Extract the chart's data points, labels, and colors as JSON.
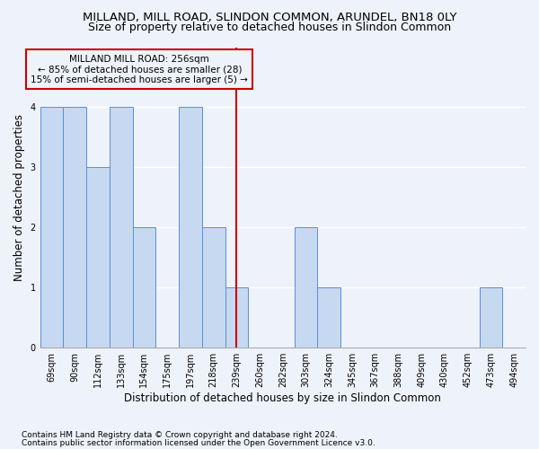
{
  "title1": "MILLAND, MILL ROAD, SLINDON COMMON, ARUNDEL, BN18 0LY",
  "title2": "Size of property relative to detached houses in Slindon Common",
  "xlabel": "Distribution of detached houses by size in Slindon Common",
  "ylabel": "Number of detached properties",
  "footnote1": "Contains HM Land Registry data © Crown copyright and database right 2024.",
  "footnote2": "Contains public sector information licensed under the Open Government Licence v3.0.",
  "annotation_line1": "MILLAND MILL ROAD: 256sqm",
  "annotation_line2": "← 85% of detached houses are smaller (28)",
  "annotation_line3": "15% of semi-detached houses are larger (5) →",
  "categories": [
    "69sqm",
    "90sqm",
    "112sqm",
    "133sqm",
    "154sqm",
    "175sqm",
    "197sqm",
    "218sqm",
    "239sqm",
    "260sqm",
    "282sqm",
    "303sqm",
    "324sqm",
    "345sqm",
    "367sqm",
    "388sqm",
    "409sqm",
    "430sqm",
    "452sqm",
    "473sqm",
    "494sqm"
  ],
  "values": [
    4,
    4,
    3,
    4,
    2,
    0,
    4,
    2,
    1,
    0,
    0,
    2,
    1,
    0,
    0,
    0,
    0,
    0,
    0,
    1,
    0
  ],
  "bar_color": "#c6d9f0",
  "bar_edge_color": "#5b8ed6",
  "vline_color": "#cc0000",
  "annotation_box_color": "#cc0000",
  "ylim": [
    0,
    5
  ],
  "yticks": [
    0,
    1,
    2,
    3,
    4
  ],
  "bg_color": "#eef2fa",
  "grid_color": "#ffffff",
  "title1_fontsize": 9.5,
  "title2_fontsize": 9,
  "xlabel_fontsize": 8.5,
  "ylabel_fontsize": 8.5,
  "tick_fontsize": 7,
  "annot_fontsize": 7.5,
  "footnote_fontsize": 6.5
}
